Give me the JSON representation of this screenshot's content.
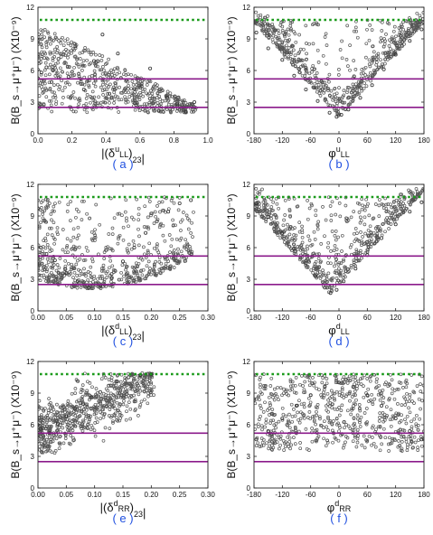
{
  "figure": {
    "background": "#ffffff"
  },
  "style": {
    "point_color": "#555555",
    "solid_line_color": "#8b1a8b",
    "dotted_line_color": "#1a9a1a",
    "label_color": "#2050e0"
  },
  "chart_data": [
    {
      "panel": "a",
      "label": "( a )",
      "type": "scatter",
      "ylabel": "B(B_s→μ⁺μ⁻) (X10⁻⁹)",
      "xlabel": "|(δ^u_LL)_23|",
      "xlim": [
        0.0,
        1.0
      ],
      "ylim": [
        0,
        12
      ],
      "xticks": [
        "0.0",
        "0.2",
        "0.4",
        "0.6",
        "0.8",
        "1.0"
      ],
      "yticks": [
        "0",
        "3",
        "6",
        "9",
        "12"
      ],
      "hlines_solid": [
        5.2,
        2.5
      ],
      "hline_dotted": 10.8,
      "scatter_pattern": "decreasing-with-x",
      "points": [
        [
          0.02,
          5.8
        ],
        [
          0.05,
          6.3
        ],
        [
          0.08,
          4.9
        ],
        [
          0.12,
          7.1
        ],
        [
          0.18,
          5.4
        ],
        [
          0.22,
          8.3
        ],
        [
          0.27,
          4.2
        ],
        [
          0.33,
          6.9
        ],
        [
          0.38,
          9.4
        ],
        [
          0.42,
          3.8
        ],
        [
          0.47,
          7.6
        ],
        [
          0.52,
          5.1
        ],
        [
          0.57,
          2.9
        ],
        [
          0.61,
          4.5
        ],
        [
          0.66,
          6.2
        ],
        [
          0.71,
          2.2
        ],
        [
          0.76,
          3.4
        ],
        [
          0.82,
          2.8
        ],
        [
          0.87,
          2.1
        ],
        [
          0.92,
          3.0
        ]
      ]
    },
    {
      "panel": "b",
      "label": "( b )",
      "type": "scatter",
      "ylabel": "B(B_s→μ⁺μ⁻) (X10⁻⁹)",
      "xlabel": "φ^u_LL",
      "xlim": [
        -180,
        180
      ],
      "ylim": [
        0,
        12
      ],
      "xticks": [
        "-180",
        "-120",
        "-60",
        "0",
        "60",
        "120",
        "180"
      ],
      "yticks": [
        "0",
        "3",
        "6",
        "9",
        "12"
      ],
      "hlines_solid": [
        5.2,
        2.5
      ],
      "hline_dotted": 10.8,
      "scatter_pattern": "v-shape",
      "points": [
        [
          -175,
          9.6
        ],
        [
          -150,
          8.1
        ],
        [
          -120,
          7.0
        ],
        [
          -95,
          5.5
        ],
        [
          -70,
          4.2
        ],
        [
          -45,
          3.1
        ],
        [
          -20,
          2.0
        ],
        [
          -5,
          1.6
        ],
        [
          5,
          1.8
        ],
        [
          20,
          2.3
        ],
        [
          45,
          3.4
        ],
        [
          70,
          4.6
        ],
        [
          95,
          6.1
        ],
        [
          120,
          7.5
        ],
        [
          150,
          8.8
        ],
        [
          175,
          9.9
        ]
      ]
    },
    {
      "panel": "c",
      "label": "( c )",
      "type": "scatter",
      "ylabel": "B(B_s→μ⁺μ⁻) (X10⁻⁹)",
      "xlabel": "|(δ^d_LL)_23|",
      "xlim": [
        0.0,
        0.3
      ],
      "ylim": [
        0,
        12
      ],
      "xticks": [
        "0.00",
        "0.05",
        "0.10",
        "0.15",
        "0.20",
        "0.25",
        "0.30"
      ],
      "yticks": [
        "0",
        "3",
        "6",
        "9",
        "12"
      ],
      "hlines_solid": [
        5.2,
        2.5
      ],
      "hline_dotted": 10.8,
      "scatter_pattern": "u-shape",
      "points": [
        [
          0.005,
          6.0
        ],
        [
          0.015,
          5.4
        ],
        [
          0.03,
          4.8
        ],
        [
          0.05,
          3.6
        ],
        [
          0.07,
          2.8
        ],
        [
          0.09,
          2.2
        ],
        [
          0.11,
          2.4
        ],
        [
          0.13,
          3.5
        ],
        [
          0.15,
          4.7
        ],
        [
          0.17,
          6.0
        ],
        [
          0.19,
          7.4
        ],
        [
          0.21,
          8.5
        ],
        [
          0.23,
          9.4
        ],
        [
          0.25,
          10.2
        ],
        [
          0.27,
          10.5
        ]
      ]
    },
    {
      "panel": "d",
      "label": "( d )",
      "type": "scatter",
      "ylabel": "B(B_s→μ⁺μ⁻) (X10⁻⁹)",
      "xlabel": "φ^d_LL",
      "xlim": [
        -180,
        180
      ],
      "ylim": [
        0,
        12
      ],
      "xticks": [
        "-180",
        "-120",
        "-60",
        "0",
        "60",
        "120",
        "180"
      ],
      "yticks": [
        "0",
        "3",
        "6",
        "9",
        "12"
      ],
      "hlines_solid": [
        5.2,
        2.5
      ],
      "hline_dotted": 10.8,
      "scatter_pattern": "v-shape-shifted",
      "points": [
        [
          -175,
          10.2
        ],
        [
          -150,
          8.9
        ],
        [
          -120,
          7.4
        ],
        [
          -95,
          5.9
        ],
        [
          -70,
          4.5
        ],
        [
          -50,
          3.3
        ],
        [
          -30,
          2.2
        ],
        [
          -18,
          1.7
        ],
        [
          -5,
          2.0
        ],
        [
          10,
          2.8
        ],
        [
          35,
          4.0
        ],
        [
          60,
          5.3
        ],
        [
          90,
          6.9
        ],
        [
          120,
          8.2
        ],
        [
          150,
          9.4
        ],
        [
          175,
          10.3
        ]
      ]
    },
    {
      "panel": "e",
      "label": "( e )",
      "type": "scatter",
      "ylabel": "B(B_s→μ⁺μ⁻) (X10⁻⁹)",
      "xlabel": "|(δ^d_RR)_23|",
      "xlim": [
        0.0,
        0.3
      ],
      "ylim": [
        0,
        12
      ],
      "xticks": [
        "0.00",
        "0.05",
        "0.10",
        "0.15",
        "0.20",
        "0.25",
        "0.30"
      ],
      "yticks": [
        "0",
        "3",
        "6",
        "9",
        "12"
      ],
      "hlines_solid": [
        5.2,
        2.5
      ],
      "hline_dotted": 10.8,
      "scatter_pattern": "increasing-with-x",
      "points": [
        [
          0.005,
          5.6
        ],
        [
          0.02,
          5.2
        ],
        [
          0.035,
          6.1
        ],
        [
          0.05,
          6.8
        ],
        [
          0.065,
          7.5
        ],
        [
          0.08,
          8.0
        ],
        [
          0.095,
          8.6
        ],
        [
          0.11,
          9.1
        ],
        [
          0.125,
          9.7
        ],
        [
          0.14,
          10.1
        ],
        [
          0.16,
          10.5
        ],
        [
          0.18,
          10.7
        ],
        [
          0.2,
          10.8
        ]
      ]
    },
    {
      "panel": "f",
      "label": "( f )",
      "type": "scatter",
      "ylabel": "B(B_s→μ⁺μ⁻) (X10⁻⁹)",
      "xlabel": "φ^d_RR",
      "xlim": [
        -180,
        180
      ],
      "ylim": [
        0,
        12
      ],
      "xticks": [
        "-180",
        "-120",
        "-60",
        "0",
        "60",
        "120",
        "180"
      ],
      "yticks": [
        "0",
        "3",
        "6",
        "9",
        "12"
      ],
      "hlines_solid": [
        5.2,
        2.5
      ],
      "hline_dotted": 10.8,
      "scatter_pattern": "u-shape-wide",
      "points": [
        [
          -175,
          4.6
        ],
        [
          -150,
          5.4
        ],
        [
          -120,
          6.6
        ],
        [
          -90,
          7.8
        ],
        [
          -60,
          8.8
        ],
        [
          -30,
          9.6
        ],
        [
          0,
          10.0
        ],
        [
          30,
          9.6
        ],
        [
          60,
          8.8
        ],
        [
          90,
          7.8
        ],
        [
          120,
          6.6
        ],
        [
          150,
          5.4
        ],
        [
          175,
          4.6
        ]
      ]
    }
  ]
}
